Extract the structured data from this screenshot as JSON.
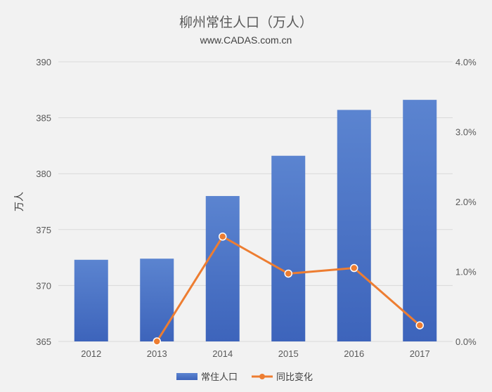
{
  "chart_data": {
    "type": "bar",
    "title": "柳州常住人口（万人）",
    "subtitle": "www.CADAS.com.cn",
    "categories": [
      "2012",
      "2013",
      "2014",
      "2015",
      "2016",
      "2017"
    ],
    "series": [
      {
        "name": "常住人口",
        "type": "bar",
        "axis": "left",
        "values": [
          372.3,
          372.4,
          378.0,
          381.6,
          385.7,
          386.6
        ],
        "color": "#4472c4"
      },
      {
        "name": "同比变化",
        "type": "line",
        "axis": "right",
        "values": [
          null,
          0.0,
          1.5,
          0.97,
          1.05,
          0.23
        ],
        "color": "#ed7d31"
      }
    ],
    "ylabel": "万人",
    "ylim": [
      365,
      390
    ],
    "yticks": [
      365,
      370,
      375,
      380,
      385,
      390
    ],
    "y2lim": [
      0,
      4
    ],
    "y2ticks": [
      "0.0%",
      "1.0%",
      "2.0%",
      "3.0%",
      "4.0%"
    ],
    "grid": true,
    "legend": "bottom"
  }
}
